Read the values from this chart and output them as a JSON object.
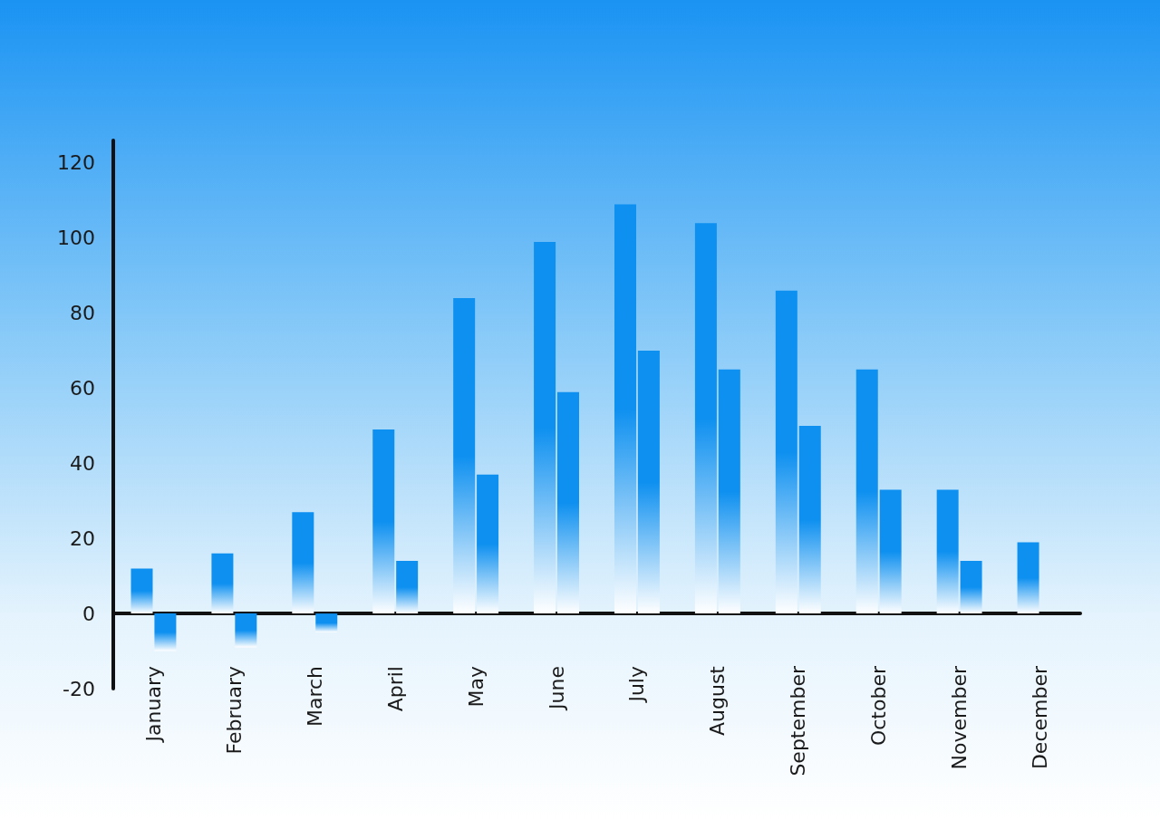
{
  "chart_data": {
    "type": "bar",
    "categories": [
      "January",
      "February",
      "March",
      "April",
      "May",
      "June",
      "July",
      "August",
      "September",
      "October",
      "November",
      "December"
    ],
    "series": [
      {
        "color": "#0e90f0",
        "values": [
          12,
          16,
          27,
          49,
          84,
          99,
          109,
          104,
          86,
          65,
          33,
          19
        ]
      },
      {
        "color": "#0e90f0",
        "values": [
          -10,
          -9,
          -5,
          14,
          37,
          59,
          70,
          65,
          50,
          33,
          14,
          null
        ]
      }
    ],
    "ylim": [
      -20,
      126
    ],
    "yticks": [
      -20,
      0,
      20,
      40,
      60,
      80,
      100,
      120
    ]
  }
}
